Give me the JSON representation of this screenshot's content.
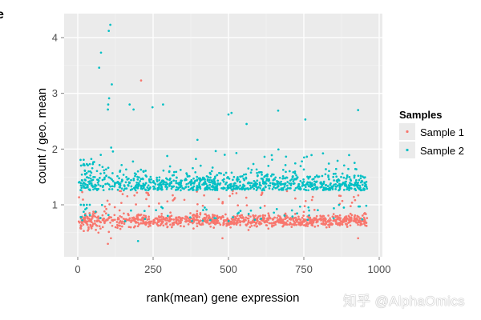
{
  "chart_data": {
    "type": "scatter",
    "title": "",
    "xlabel": "rank(mean) gene expression",
    "ylabel": "count / geo. mean",
    "xlim": [
      -40,
      1005
    ],
    "ylim": [
      0.07,
      4.4
    ],
    "x_ticks": [
      0,
      250,
      500,
      750,
      1000
    ],
    "x_tick_labels": [
      "0",
      "250",
      "500",
      "750",
      "1000"
    ],
    "y_ticks": [
      1,
      2,
      3,
      4
    ],
    "y_tick_labels": [
      "1",
      "2",
      "3",
      "4"
    ],
    "grid": true,
    "legend_position": "right",
    "legend": {
      "title": "Samples",
      "entries": [
        "Sample 1",
        "Sample 2"
      ]
    },
    "series": [
      {
        "name": "Sample 1",
        "color": "#F8766D",
        "n_points": 960,
        "x_range": [
          1,
          960
        ],
        "typical_y_range": [
          0.3,
          1.0
        ],
        "center_y": 0.72,
        "notable_points": [
          [
            210,
            3.23
          ],
          [
            30,
            0.7
          ],
          [
            60,
            0.55
          ],
          [
            100,
            0.3
          ],
          [
            110,
            0.4
          ],
          [
            480,
            0.4
          ],
          [
            930,
            0.4
          ]
        ]
      },
      {
        "name": "Sample 2",
        "color": "#00BFC4",
        "n_points": 960,
        "x_range": [
          1,
          960
        ],
        "typical_y_range": [
          1.0,
          2.1
        ],
        "center_y": 1.38,
        "notable_points": [
          [
            108,
            4.23
          ],
          [
            103,
            4.12
          ],
          [
            77,
            3.73
          ],
          [
            71,
            3.46
          ],
          [
            113,
            3.16
          ],
          [
            104,
            2.91
          ],
          [
            101,
            2.8
          ],
          [
            100,
            2.71
          ],
          [
            172,
            2.8
          ],
          [
            185,
            2.71
          ],
          [
            283,
            2.8
          ],
          [
            248,
            2.75
          ],
          [
            500,
            2.62
          ],
          [
            510,
            2.65
          ],
          [
            665,
            2.69
          ],
          [
            755,
            2.53
          ],
          [
            930,
            2.7
          ],
          [
            560,
            2.45
          ],
          [
            20,
            1.73
          ],
          [
            30,
            1.73
          ],
          [
            40,
            1.73
          ],
          [
            50,
            1.73
          ],
          [
            10,
            1.0
          ],
          [
            20,
            1.0
          ],
          [
            30,
            1.0
          ],
          [
            40,
            1.0
          ],
          [
            200,
            0.35
          ]
        ]
      }
    ]
  },
  "watermark": "知乎 @AlphaOmics",
  "cut_glyph": "e"
}
